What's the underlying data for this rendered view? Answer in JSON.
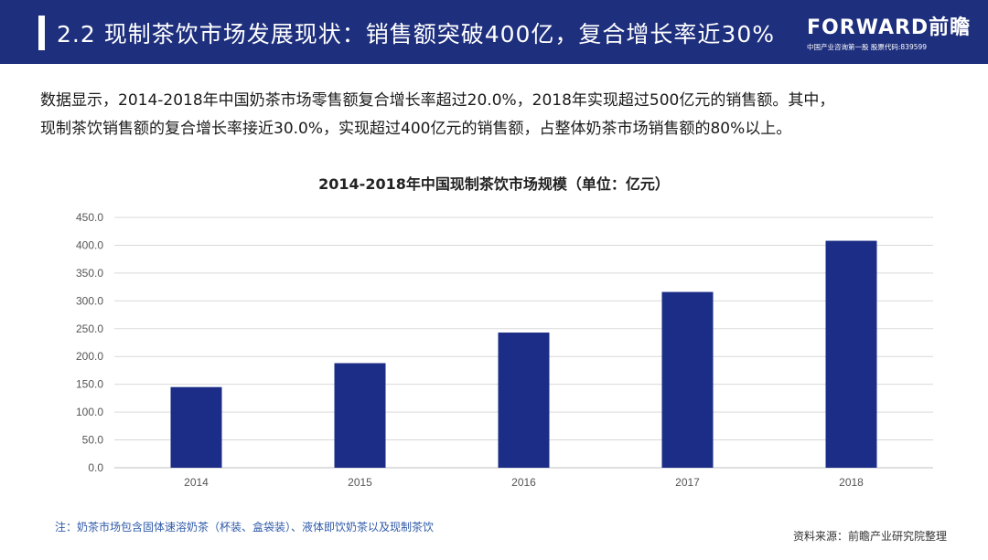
{
  "header": {
    "title": "2.2 现制茶饮市场发展现状：销售额突破400亿，复合增长率近30%",
    "logo_main": "FORWARD前瞻",
    "logo_sub": "中国产业咨询第一股 股票代码:839599",
    "bg_color": "#1e2f7d"
  },
  "intro": {
    "line1": "数据显示，2014-2018年中国奶茶市场零售额复合增长率超过20.0%，2018年实现超过500亿元的销售额。其中，",
    "line2": "现制茶饮销售额的复合增长率接近30.0%，实现超过400亿元的销售额，占整体奶茶市场销售额的80%以上。"
  },
  "chart_data": {
    "type": "bar",
    "title": "2014-2018年中国现制茶饮市场规模（单位：亿元）",
    "categories": [
      "2014",
      "2015",
      "2016",
      "2017",
      "2018"
    ],
    "values": [
      145,
      188,
      243,
      316,
      408
    ],
    "ylim": [
      0,
      450
    ],
    "yticks": [
      "0.0",
      "50.0",
      "100.0",
      "150.0",
      "200.0",
      "250.0",
      "300.0",
      "350.0",
      "400.0",
      "450.0"
    ],
    "xlabel": "",
    "ylabel": "",
    "grid": true,
    "bar_color": "#1b2d86"
  },
  "footer": {
    "note": "注：奶茶市场包含固体速溶奶茶（杯装、盒袋装）、液体即饮奶茶以及现制茶饮",
    "source": "资料来源：前瞻产业研究院整理"
  }
}
